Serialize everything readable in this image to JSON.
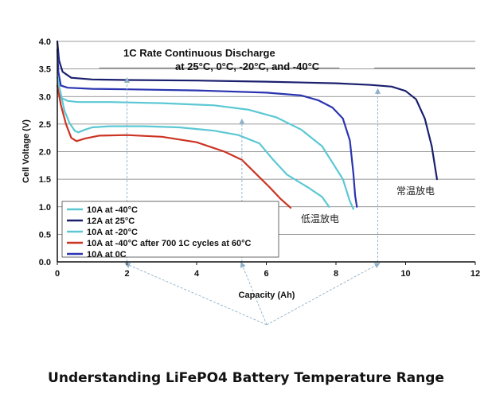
{
  "chart_data": {
    "type": "line",
    "title_line1": "1C Rate Continuous Discharge",
    "title_line2": "at 25°C, 0°C, -20°C, and -40°C",
    "xlabel": "Capacity (Ah)",
    "ylabel": "Cell Voltage (V)",
    "xlim": [
      0,
      12
    ],
    "ylim": [
      0,
      4
    ],
    "x_ticks": [
      "0",
      "2",
      "4",
      "6",
      "8",
      "10",
      "12"
    ],
    "y_ticks": [
      "0.0",
      "0.5",
      "1.0",
      "1.5",
      "2.0",
      "2.5",
      "3.0",
      "3.5",
      "4.0"
    ],
    "grid": "horizontal",
    "legend_position": "bottom-left",
    "series": [
      {
        "name": "10A at -40°C",
        "color": "#5bc8d4",
        "points": [
          [
            0,
            3.35
          ],
          [
            0.1,
            3.05
          ],
          [
            0.2,
            2.75
          ],
          [
            0.35,
            2.52
          ],
          [
            0.5,
            2.38
          ],
          [
            0.6,
            2.35
          ],
          [
            0.8,
            2.4
          ],
          [
            1.0,
            2.44
          ],
          [
            1.5,
            2.46
          ],
          [
            2.5,
            2.46
          ],
          [
            3.5,
            2.44
          ],
          [
            4.5,
            2.38
          ],
          [
            5.2,
            2.3
          ],
          [
            5.8,
            2.15
          ],
          [
            6.2,
            1.85
          ],
          [
            6.6,
            1.58
          ],
          [
            7.2,
            1.35
          ],
          [
            7.6,
            1.18
          ],
          [
            7.8,
            1.0
          ]
        ]
      },
      {
        "name": "12A at 25°C",
        "color": "#1a1f6e",
        "points": [
          [
            0,
            4.0
          ],
          [
            0.05,
            3.65
          ],
          [
            0.15,
            3.45
          ],
          [
            0.4,
            3.34
          ],
          [
            1.0,
            3.31
          ],
          [
            2.0,
            3.3
          ],
          [
            4.0,
            3.29
          ],
          [
            6.0,
            3.27
          ],
          [
            8.0,
            3.24
          ],
          [
            9.0,
            3.21
          ],
          [
            9.6,
            3.18
          ],
          [
            10.0,
            3.1
          ],
          [
            10.3,
            2.95
          ],
          [
            10.55,
            2.6
          ],
          [
            10.75,
            2.1
          ],
          [
            10.85,
            1.7
          ],
          [
            10.9,
            1.5
          ]
        ]
      },
      {
        "name": "10A at -20°C",
        "color": "#5bc8d4",
        "points": [
          [
            0,
            3.1
          ],
          [
            0.1,
            2.98
          ],
          [
            0.3,
            2.92
          ],
          [
            0.6,
            2.9
          ],
          [
            1.5,
            2.9
          ],
          [
            3.0,
            2.88
          ],
          [
            4.5,
            2.84
          ],
          [
            5.5,
            2.76
          ],
          [
            6.3,
            2.62
          ],
          [
            7.0,
            2.4
          ],
          [
            7.6,
            2.1
          ],
          [
            7.9,
            1.8
          ],
          [
            8.2,
            1.5
          ],
          [
            8.4,
            1.1
          ],
          [
            8.5,
            0.96
          ]
        ]
      },
      {
        "name": "10A at -40°C after 700 1C cycles at 60°C",
        "color": "#cc3322",
        "points": [
          [
            0,
            3.2
          ],
          [
            0.1,
            2.85
          ],
          [
            0.25,
            2.5
          ],
          [
            0.4,
            2.25
          ],
          [
            0.55,
            2.19
          ],
          [
            0.8,
            2.24
          ],
          [
            1.2,
            2.29
          ],
          [
            2.0,
            2.3
          ],
          [
            3.0,
            2.27
          ],
          [
            4.0,
            2.17
          ],
          [
            4.8,
            2.0
          ],
          [
            5.3,
            1.85
          ],
          [
            5.7,
            1.6
          ],
          [
            6.1,
            1.35
          ],
          [
            6.4,
            1.15
          ],
          [
            6.7,
            0.98
          ]
        ]
      },
      {
        "name": "10A at 0C",
        "color": "#2a34b0",
        "points": [
          [
            0,
            3.85
          ],
          [
            0.03,
            3.45
          ],
          [
            0.1,
            3.2
          ],
          [
            0.3,
            3.16
          ],
          [
            1.0,
            3.14
          ],
          [
            2.0,
            3.13
          ],
          [
            4.0,
            3.11
          ],
          [
            6.0,
            3.07
          ],
          [
            7.0,
            3.02
          ],
          [
            7.5,
            2.93
          ],
          [
            7.9,
            2.8
          ],
          [
            8.2,
            2.6
          ],
          [
            8.4,
            2.2
          ],
          [
            8.5,
            1.6
          ],
          [
            8.55,
            1.2
          ],
          [
            8.6,
            1.0
          ]
        ]
      }
    ],
    "annotations": [
      "常温放电",
      "低温放电"
    ],
    "caption": "Understanding LiFePO4 Battery Temperature Range"
  }
}
